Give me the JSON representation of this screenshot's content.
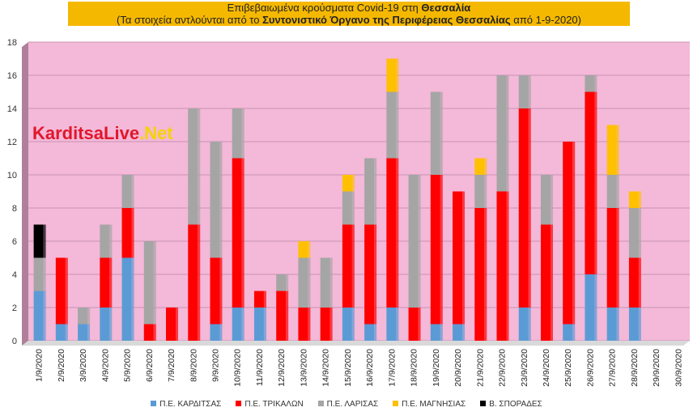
{
  "title": {
    "line1_prefix": "Επιβεβαιωμένα κρούσματα Covid-19 στη ",
    "line1_bold": "Θεσσαλία",
    "line2_prefix": "(Τα στοιχεία αντλούνται από το ",
    "line2_bold": "Συντονιστικό Όργανο της Περιφέρειας Θεσσαλίας",
    "line2_suffix": " από 1-9-2020)"
  },
  "watermark": {
    "part1": "KarditsaLive",
    "part2": ".Net"
  },
  "chart_data": {
    "type": "bar",
    "stacked": true,
    "categories": [
      "1/9/2020",
      "2/9/2020",
      "3/9/2020",
      "4/9/2020",
      "5/9/2020",
      "6/9/2020",
      "7/9/2020",
      "8/9/2020",
      "9/9/2020",
      "10/9/2020",
      "11/9/2020",
      "12/9/2020",
      "13/9/2020",
      "14/9/2020",
      "15/9/2020",
      "16/9/2020",
      "17/9/2020",
      "18/9/2020",
      "19/9/2020",
      "20/9/2020",
      "21/9/2020",
      "22/9/2020",
      "23/9/2020",
      "24/9/2020",
      "25/9/2020",
      "26/9/2020",
      "27/9/2020",
      "28/9/2020",
      "29/9/2020",
      "30/9/2020"
    ],
    "series": [
      {
        "name": "Π.Ε. ΚΑΡΔΙΤΣΑΣ",
        "color": "#5b9bd5",
        "values": [
          3,
          1,
          1,
          2,
          5,
          0,
          0,
          0,
          1,
          2,
          2,
          0,
          0,
          0,
          2,
          1,
          2,
          0,
          1,
          1,
          0,
          0,
          2,
          0,
          1,
          4,
          2,
          2,
          0,
          0
        ]
      },
      {
        "name": "Π.Ε. ΤΡΙΚΑΛΩΝ",
        "color": "#ff0000",
        "values": [
          0,
          4,
          0,
          3,
          3,
          1,
          2,
          7,
          4,
          9,
          1,
          3,
          2,
          2,
          5,
          6,
          9,
          2,
          9,
          8,
          8,
          9,
          12,
          7,
          11,
          11,
          6,
          3,
          0,
          0
        ]
      },
      {
        "name": "Π.Ε. ΛΑΡΙΣΑΣ",
        "color": "#a5a5a5",
        "values": [
          2,
          0,
          1,
          2,
          2,
          5,
          0,
          7,
          7,
          3,
          0,
          1,
          3,
          3,
          2,
          4,
          4,
          8,
          5,
          0,
          2,
          7,
          2,
          3,
          0,
          1,
          2,
          3,
          0,
          0
        ]
      },
      {
        "name": "Π.Ε. ΜΑΓΝΗΣΙΑΣ",
        "color": "#ffc000",
        "values": [
          0,
          0,
          0,
          0,
          0,
          0,
          0,
          0,
          0,
          0,
          0,
          0,
          1,
          0,
          1,
          0,
          2,
          0,
          0,
          0,
          1,
          0,
          0,
          0,
          0,
          0,
          3,
          1,
          0,
          0
        ]
      },
      {
        "name": "Β. ΣΠΟΡΑΔΕΣ",
        "color": "#000000",
        "values": [
          2,
          0,
          0,
          0,
          0,
          0,
          0,
          0,
          0,
          0,
          0,
          0,
          0,
          0,
          0,
          0,
          0,
          0,
          0,
          0,
          0,
          0,
          0,
          0,
          0,
          0,
          0,
          0,
          0,
          0
        ]
      }
    ],
    "ylim": [
      0,
      18
    ],
    "yticks": [
      0,
      2,
      4,
      6,
      8,
      10,
      12,
      14,
      16,
      18
    ],
    "grid": true,
    "legend": "bottom",
    "plot_background": "#f4b8d8"
  }
}
